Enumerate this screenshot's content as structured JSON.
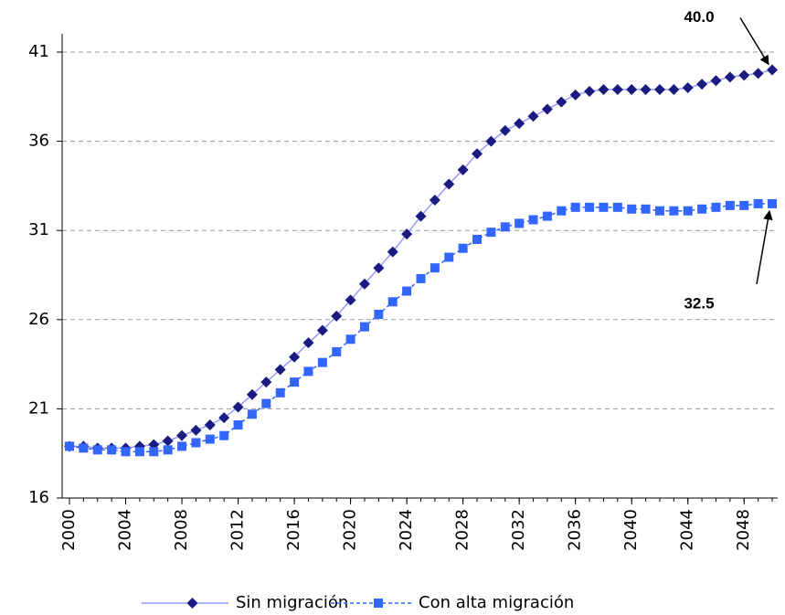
{
  "chart_data": {
    "type": "line",
    "x": [
      2000,
      2001,
      2002,
      2003,
      2004,
      2005,
      2006,
      2007,
      2008,
      2009,
      2010,
      2011,
      2012,
      2013,
      2014,
      2015,
      2016,
      2017,
      2018,
      2019,
      2020,
      2021,
      2022,
      2023,
      2024,
      2025,
      2026,
      2027,
      2028,
      2029,
      2030,
      2031,
      2032,
      2033,
      2034,
      2035,
      2036,
      2037,
      2038,
      2039,
      2040,
      2041,
      2042,
      2043,
      2044,
      2045,
      2046,
      2047,
      2048,
      2049,
      2050
    ],
    "series": [
      {
        "name": "Sin migración",
        "color": "#1a1a80",
        "line_color": "#9999ff",
        "marker": "diamond",
        "dash": false,
        "values": [
          18.9,
          18.9,
          18.8,
          18.8,
          18.8,
          18.9,
          19.0,
          19.2,
          19.5,
          19.8,
          20.1,
          20.5,
          21.1,
          21.8,
          22.5,
          23.2,
          23.9,
          24.7,
          25.4,
          26.2,
          27.1,
          28.0,
          28.9,
          29.8,
          30.8,
          31.8,
          32.7,
          33.6,
          34.4,
          35.3,
          36.0,
          36.6,
          37.0,
          37.4,
          37.8,
          38.2,
          38.6,
          38.8,
          38.9,
          38.9,
          38.9,
          38.9,
          38.9,
          38.9,
          39.0,
          39.2,
          39.4,
          39.6,
          39.7,
          39.8,
          40.0
        ]
      },
      {
        "name": "Con alta migración",
        "color": "#3366ff",
        "line_color": "#3366ff",
        "marker": "square",
        "dash": true,
        "values": [
          18.9,
          18.8,
          18.7,
          18.7,
          18.6,
          18.6,
          18.6,
          18.7,
          18.9,
          19.1,
          19.3,
          19.5,
          20.1,
          20.7,
          21.3,
          21.9,
          22.5,
          23.1,
          23.6,
          24.2,
          24.9,
          25.6,
          26.3,
          27.0,
          27.6,
          28.3,
          28.9,
          29.5,
          30.0,
          30.5,
          30.9,
          31.2,
          31.4,
          31.6,
          31.8,
          32.1,
          32.3,
          32.3,
          32.3,
          32.3,
          32.2,
          32.2,
          32.1,
          32.1,
          32.1,
          32.2,
          32.3,
          32.4,
          32.4,
          32.5,
          32.5
        ]
      }
    ],
    "xlim": [
      2000,
      2050
    ],
    "xticks": [
      2000,
      2004,
      2008,
      2012,
      2016,
      2020,
      2024,
      2028,
      2032,
      2036,
      2040,
      2044,
      2048
    ],
    "ylim": [
      16,
      41
    ],
    "yticks": [
      16,
      21,
      26,
      31,
      36,
      41
    ],
    "grid": true,
    "legend": "bottom",
    "annotations": [
      {
        "text": "40.0",
        "x": 2050,
        "y": 40.0
      },
      {
        "text": "32.5",
        "x": 2050,
        "y": 32.5
      }
    ]
  }
}
